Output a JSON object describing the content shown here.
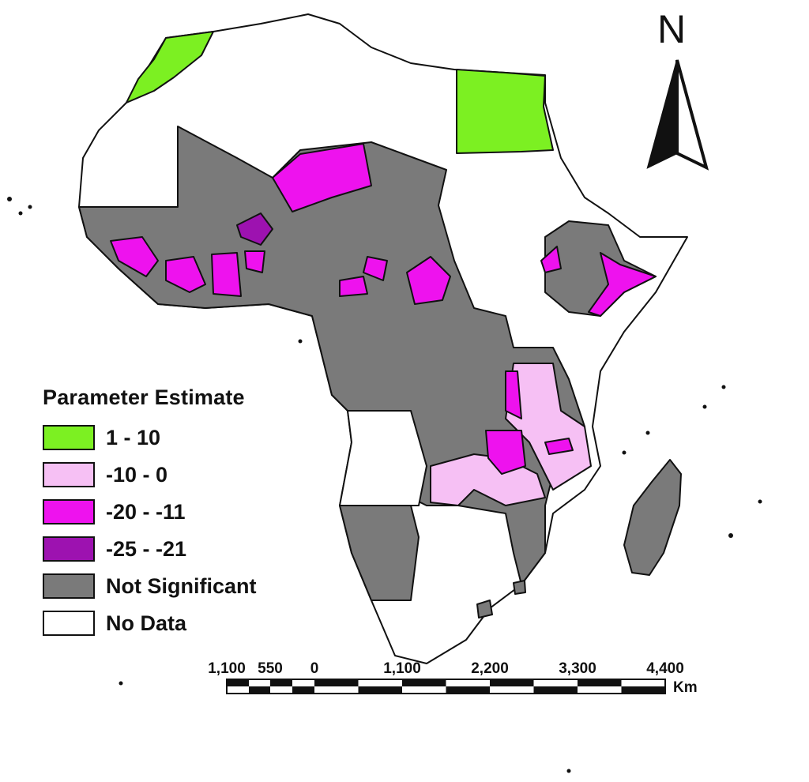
{
  "legend": {
    "title": "Parameter Estimate",
    "items": [
      {
        "label": "1 - 10",
        "color": "#7cf022"
      },
      {
        "label": "-10 - 0",
        "color": "#f6c0f4"
      },
      {
        "label": "-20 - -11",
        "color": "#ee12ee"
      },
      {
        "label": "-25 - -21",
        "color": "#9d12b0"
      },
      {
        "label": "Not Significant",
        "color": "#7a7a7a"
      },
      {
        "label": "No Data",
        "color": "#ffffff"
      }
    ]
  },
  "north_arrow": {
    "letter": "N"
  },
  "scale_bar": {
    "labels": [
      "1,100",
      "550",
      "0",
      "1,100",
      "2,200",
      "3,300",
      "4,400"
    ],
    "unit": "Km"
  }
}
